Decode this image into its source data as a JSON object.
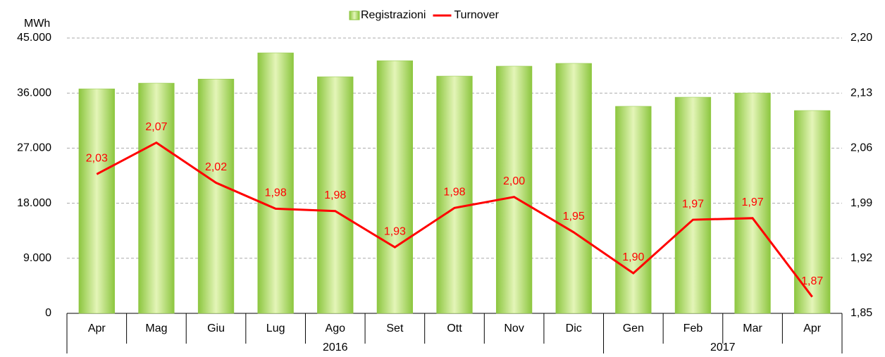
{
  "chart_data": {
    "type": "combo",
    "ylabel": "MWh",
    "categories": [
      "Apr",
      "Mag",
      "Giu",
      "Lug",
      "Ago",
      "Set",
      "Ott",
      "Nov",
      "Dic",
      "Gen",
      "Feb",
      "Mar",
      "Apr"
    ],
    "x_groups": [
      {
        "name": "2016",
        "count": 9
      },
      {
        "name": "2017",
        "count": 4
      }
    ],
    "series": [
      {
        "name": "Registrazioni",
        "type": "bar",
        "color": "#8dc63f",
        "values": [
          36700,
          37630,
          38300,
          42580,
          38670,
          41300,
          38780,
          40400,
          40860,
          33840,
          35330,
          36020,
          33150
        ]
      },
      {
        "name": "Turnover",
        "type": "line",
        "axis": "y2",
        "color": "#ff0000",
        "values": [
          2.027,
          2.067,
          2.016,
          1.983,
          1.98,
          1.934,
          1.984,
          1.998,
          1.953,
          1.901,
          1.969,
          1.971,
          1.871
        ],
        "value_labels": [
          "2,03",
          "2,07",
          "2,02",
          "1,98",
          "1,98",
          "1,93",
          "1,98",
          "2,00",
          "1,95",
          "1,90",
          "1,97",
          "1,97",
          "1,87"
        ]
      }
    ],
    "ylim": [
      0,
      45000
    ],
    "yticks": [
      0,
      {
        "value": 9000,
        "label": "9.000"
      },
      {
        "value": 18000,
        "label": "18.000"
      },
      {
        "value": 27000,
        "label": "27.000"
      },
      {
        "value": 36000,
        "label": "36.000"
      },
      {
        "value": 45000,
        "label": "45.000"
      }
    ],
    "y2lim": [
      1.85,
      2.2
    ],
    "y2ticks": [
      {
        "value": 1.85,
        "label": "1,85"
      },
      {
        "value": 1.92,
        "label": "1,92"
      },
      {
        "value": 1.99,
        "label": "1,99"
      },
      {
        "value": 2.06,
        "label": "2,06"
      },
      {
        "value": 2.13,
        "label": "2,13"
      },
      {
        "value": 2.2,
        "label": "2,20"
      }
    ],
    "grid": true,
    "legend": "top"
  }
}
